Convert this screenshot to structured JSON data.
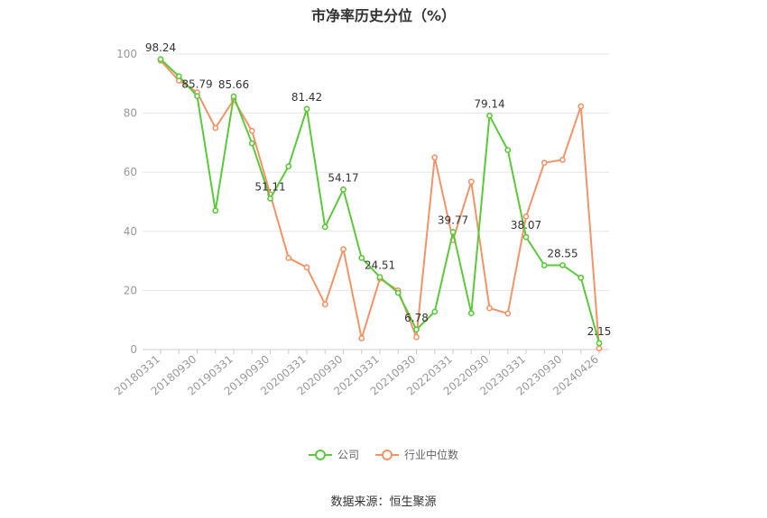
{
  "chart_data": {
    "type": "line",
    "title": "市净率历史分位（%）",
    "x_tick_labels": [
      "20180331",
      "20180930",
      "20190331",
      "20190930",
      "20200331",
      "20200930",
      "20210331",
      "20210930",
      "20220331",
      "20220930",
      "20230331",
      "20230930",
      "20240426"
    ],
    "ylim": [
      0,
      100
    ],
    "yticks": [
      0,
      20,
      40,
      60,
      80,
      100
    ],
    "grid": true,
    "legend_position": "bottom",
    "series": [
      {
        "name": "公司",
        "color": "#5cc83b",
        "values": [
          98.24,
          92.5,
          85.79,
          47.0,
          85.66,
          69.8,
          51.11,
          62.0,
          81.42,
          41.5,
          54.17,
          31.0,
          24.51,
          19.2,
          6.78,
          12.8,
          39.77,
          12.3,
          79.14,
          67.5,
          38.07,
          28.5,
          28.55,
          24.3,
          2.15
        ],
        "labels": {
          "0": "98.24",
          "2": "85.79",
          "4": "85.66",
          "6": "51.11",
          "8": "81.42",
          "10": "54.17",
          "12": "24.51",
          "14": "6.78",
          "16": "39.77",
          "18": "79.14",
          "20": "38.07",
          "22": "28.55",
          "24": "2.15"
        }
      },
      {
        "name": "行业中位数",
        "color": "#f2946a",
        "values": [
          97.8,
          91.0,
          87.0,
          75.0,
          84.5,
          74.0,
          52.5,
          31.0,
          27.8,
          15.3,
          34.0,
          3.8,
          24.0,
          20.0,
          4.2,
          65.0,
          37.0,
          56.8,
          14.0,
          12.2,
          45.0,
          63.2,
          64.2,
          82.3,
          0.4
        ]
      }
    ]
  },
  "source_text": "数据来源：恒生聚源"
}
